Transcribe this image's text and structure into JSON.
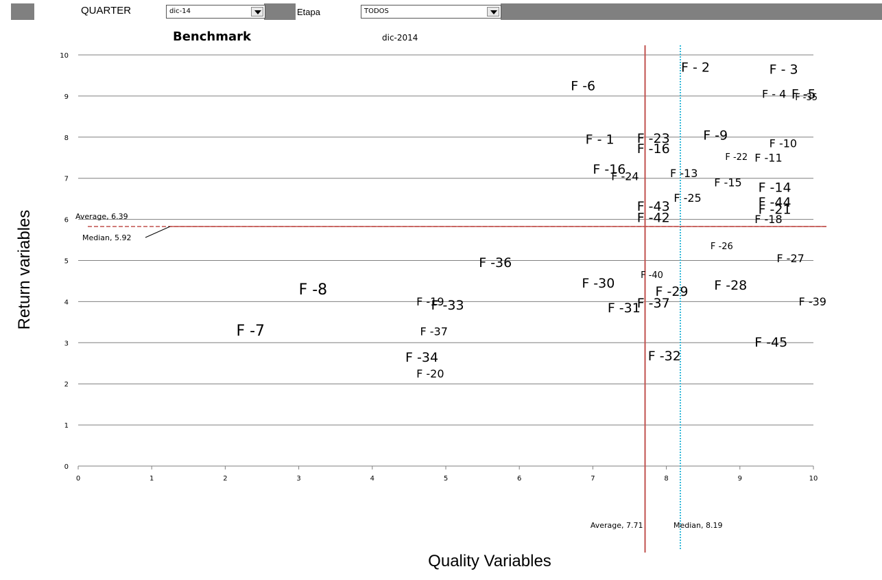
{
  "filters": {
    "quarter_label": "QUARTER",
    "quarter_value": "dic-14",
    "stage_label": "Etapa",
    "stage_value": "TODOS"
  },
  "chart_data": {
    "type": "scatter",
    "title": "Benchmark",
    "subtitle": "dic-2014",
    "xlabel": "Quality Variables",
    "ylabel": "Return variables",
    "xlim": [
      0,
      10
    ],
    "ylim": [
      0,
      10
    ],
    "xticks": [
      "0",
      "1",
      "2",
      "3",
      "4",
      "5",
      "6",
      "7",
      "8",
      "9",
      "10"
    ],
    "yticks": [
      "0",
      "1",
      "2",
      "3",
      "4",
      "5",
      "6",
      "7",
      "8",
      "9",
      "10"
    ],
    "grid": "horizontal",
    "reference_lines": [
      {
        "axis": "x",
        "label": "Average, 7.71",
        "value": 7.71,
        "color": "#c0504d",
        "style": "solid"
      },
      {
        "axis": "x",
        "label": "Median, 8.19",
        "value": 8.19,
        "color": "#31b8d9",
        "style": "dotted"
      },
      {
        "axis": "y",
        "label": "Average, 6.39",
        "value": 6.39,
        "color": "#c0504d",
        "style": "dashed"
      },
      {
        "axis": "y",
        "label": "Median, 5.92",
        "value": 5.92,
        "color": "#c0504d",
        "style": "solid"
      }
    ],
    "points": [
      {
        "label": "F - 2",
        "x": 8.2,
        "y": 9.7,
        "size": 19
      },
      {
        "label": "F - 3",
        "x": 9.4,
        "y": 9.65,
        "size": 19
      },
      {
        "label": "F -6",
        "x": 6.7,
        "y": 9.25,
        "size": 19
      },
      {
        "label": "F - 4",
        "x": 9.3,
        "y": 9.05,
        "size": 16
      },
      {
        "label": "F -5",
        "x": 9.7,
        "y": 9.05,
        "size": 19
      },
      {
        "label": "F -35",
        "x": 9.75,
        "y": 8.97,
        "size": 13
      },
      {
        "label": "F - 1",
        "x": 6.9,
        "y": 7.95,
        "size": 19
      },
      {
        "label": "F -23",
        "x": 7.6,
        "y": 7.97,
        "size": 19
      },
      {
        "label": "F -9",
        "x": 8.5,
        "y": 8.05,
        "size": 19
      },
      {
        "label": "F -16",
        "x": 7.6,
        "y": 7.72,
        "size": 19
      },
      {
        "label": "F -10",
        "x": 9.4,
        "y": 7.85,
        "size": 16
      },
      {
        "label": "F -22",
        "x": 8.8,
        "y": 7.52,
        "size": 13
      },
      {
        "label": "F -11",
        "x": 9.2,
        "y": 7.5,
        "size": 16
      },
      {
        "label": "F -16",
        "x": 7.0,
        "y": 7.22,
        "size": 19
      },
      {
        "label": "F -24",
        "x": 7.25,
        "y": 7.05,
        "size": 16
      },
      {
        "label": "F -13",
        "x": 8.05,
        "y": 7.12,
        "size": 16
      },
      {
        "label": "F -15",
        "x": 8.65,
        "y": 6.9,
        "size": 16
      },
      {
        "label": "F -14",
        "x": 9.25,
        "y": 6.78,
        "size": 19
      },
      {
        "label": "F -25",
        "x": 8.1,
        "y": 6.52,
        "size": 16
      },
      {
        "label": "F -43",
        "x": 7.6,
        "y": 6.32,
        "size": 19
      },
      {
        "label": "F -44",
        "x": 9.25,
        "y": 6.42,
        "size": 19
      },
      {
        "label": "F -21",
        "x": 9.25,
        "y": 6.25,
        "size": 19
      },
      {
        "label": "F -42",
        "x": 7.6,
        "y": 6.05,
        "size": 19
      },
      {
        "label": "F -18",
        "x": 9.2,
        "y": 6.0,
        "size": 16
      },
      {
        "label": "F -26",
        "x": 8.6,
        "y": 5.35,
        "size": 13
      },
      {
        "label": "F -27",
        "x": 9.5,
        "y": 5.05,
        "size": 16
      },
      {
        "label": "F -36",
        "x": 5.45,
        "y": 4.95,
        "size": 19
      },
      {
        "label": "F -40",
        "x": 7.65,
        "y": 4.65,
        "size": 13
      },
      {
        "label": "F -30",
        "x": 6.85,
        "y": 4.45,
        "size": 19
      },
      {
        "label": "F -28",
        "x": 8.65,
        "y": 4.4,
        "size": 19
      },
      {
        "label": "F -8",
        "x": 3.0,
        "y": 4.3,
        "size": 22
      },
      {
        "label": "F -29",
        "x": 7.85,
        "y": 4.25,
        "size": 19
      },
      {
        "label": "F -19",
        "x": 4.6,
        "y": 4.0,
        "size": 16
      },
      {
        "label": "F -33",
        "x": 4.8,
        "y": 3.92,
        "size": 19
      },
      {
        "label": "F -37",
        "x": 7.6,
        "y": 3.97,
        "size": 19
      },
      {
        "label": "F -39",
        "x": 9.8,
        "y": 4.0,
        "size": 16
      },
      {
        "label": "F -31",
        "x": 7.2,
        "y": 3.85,
        "size": 19
      },
      {
        "label": "F -7",
        "x": 2.15,
        "y": 3.3,
        "size": 22
      },
      {
        "label": "F -37",
        "x": 4.65,
        "y": 3.27,
        "size": 16
      },
      {
        "label": "F -45",
        "x": 9.2,
        "y": 3.02,
        "size": 19
      },
      {
        "label": "F -34",
        "x": 4.45,
        "y": 2.65,
        "size": 19
      },
      {
        "label": "F -32",
        "x": 7.75,
        "y": 2.68,
        "size": 19
      },
      {
        "label": "F -20",
        "x": 4.6,
        "y": 2.25,
        "size": 16
      }
    ]
  }
}
